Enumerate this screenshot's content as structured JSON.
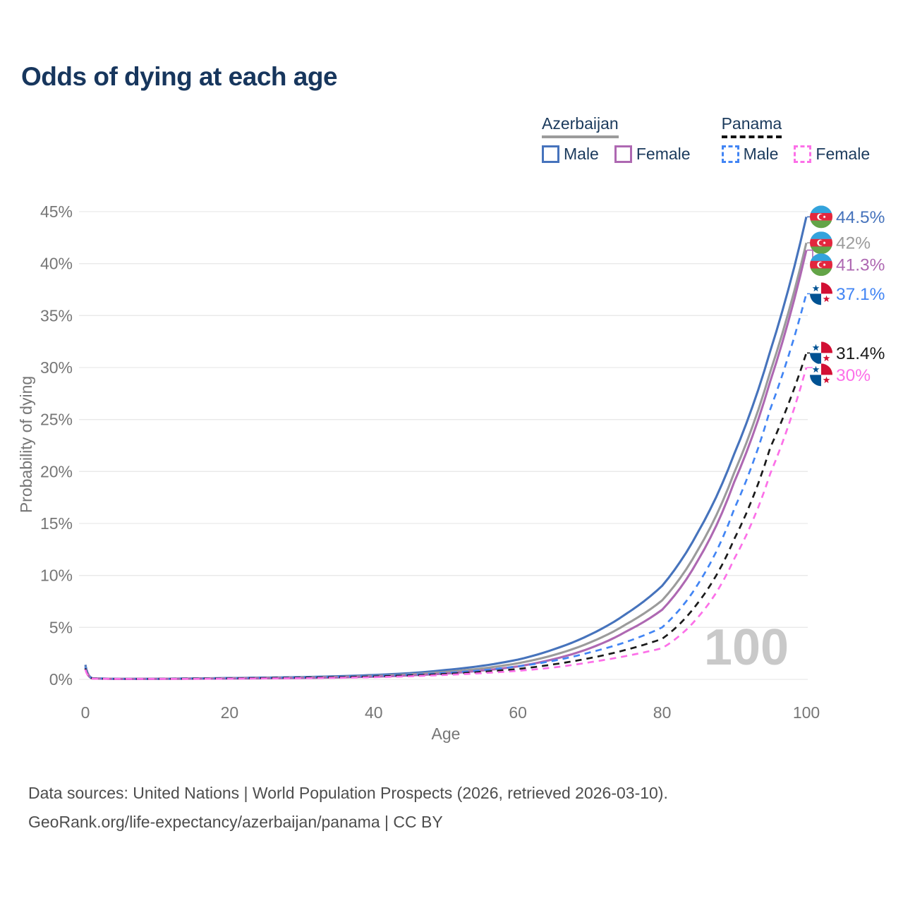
{
  "title": "Odds of dying at each age",
  "legend": {
    "groups": [
      {
        "label": "Azerbaijan",
        "line_style": "solid",
        "underline_color": "#9b9b9b",
        "items": [
          {
            "label": "Male",
            "color": "#4673bc",
            "dashed": false
          },
          {
            "label": "Female",
            "color": "#ae68b2",
            "dashed": false
          }
        ]
      },
      {
        "label": "Panama",
        "line_style": "dashed",
        "underline_color": "#111111",
        "items": [
          {
            "label": "Male",
            "color": "#4285f4",
            "dashed": true
          },
          {
            "label": "Female",
            "color": "#fc70e8",
            "dashed": true
          }
        ]
      }
    ]
  },
  "chart_data": {
    "type": "line",
    "title": "Odds of dying at each age",
    "xlabel": "Age",
    "ylabel": "Probability of dying",
    "xlim": [
      0,
      100
    ],
    "ylim": [
      0,
      45
    ],
    "xticks": [
      0,
      20,
      40,
      60,
      80,
      100
    ],
    "yticks": [
      0,
      5,
      10,
      15,
      20,
      25,
      30,
      35,
      40,
      45
    ],
    "ytick_suffix": "%",
    "grid": "horizontal",
    "legend_position": "top-right",
    "watermark": "100",
    "ages": [
      0,
      1,
      5,
      10,
      15,
      20,
      25,
      30,
      35,
      40,
      45,
      50,
      55,
      60,
      65,
      70,
      75,
      80,
      85,
      90,
      95,
      100
    ],
    "series": [
      {
        "name": "Azerbaijan Male",
        "country": "azerbaijan",
        "sex": "male",
        "color": "#4673bc",
        "dashed": false,
        "end_label": "44.5%",
        "end_value": 44.5,
        "values": [
          1.4,
          0.1,
          0.05,
          0.06,
          0.09,
          0.13,
          0.17,
          0.22,
          0.3,
          0.42,
          0.6,
          0.9,
          1.3,
          1.9,
          2.9,
          4.3,
          6.3,
          9.0,
          14.2,
          21.7,
          31.6,
          44.5
        ]
      },
      {
        "name": "Azerbaijan",
        "country": "azerbaijan",
        "sex": "both",
        "color": "#9b9b9b",
        "dashed": false,
        "end_label": "42%",
        "end_value": 42,
        "values": [
          1.25,
          0.09,
          0.05,
          0.05,
          0.08,
          0.11,
          0.14,
          0.18,
          0.24,
          0.34,
          0.48,
          0.72,
          1.05,
          1.55,
          2.35,
          3.55,
          5.3,
          7.6,
          12.5,
          19.9,
          29.6,
          42.0
        ]
      },
      {
        "name": "Azerbaijan Female",
        "country": "azerbaijan",
        "sex": "female",
        "color": "#ae68b2",
        "dashed": false,
        "end_label": "41.3%",
        "end_value": 41.3,
        "values": [
          1.1,
          0.08,
          0.04,
          0.05,
          0.06,
          0.08,
          0.1,
          0.13,
          0.18,
          0.26,
          0.38,
          0.56,
          0.85,
          1.25,
          1.95,
          3.0,
          4.6,
          6.7,
          11.5,
          19.0,
          28.7,
          41.3
        ]
      },
      {
        "name": "Panama Male",
        "country": "panama",
        "sex": "male",
        "color": "#4285f4",
        "dashed": true,
        "end_label": "37.1%",
        "end_value": 37.1,
        "values": [
          1.2,
          0.09,
          0.05,
          0.05,
          0.08,
          0.12,
          0.15,
          0.19,
          0.25,
          0.33,
          0.45,
          0.62,
          0.88,
          1.25,
          1.8,
          2.6,
          3.6,
          5.0,
          9.2,
          16.4,
          26.0,
          37.1
        ]
      },
      {
        "name": "Panama",
        "country": "panama",
        "sex": "both",
        "color": "#1a1a1a",
        "dashed": true,
        "end_label": "31.4%",
        "end_value": 31.4,
        "values": [
          1.05,
          0.08,
          0.04,
          0.05,
          0.07,
          0.1,
          0.13,
          0.16,
          0.21,
          0.28,
          0.38,
          0.52,
          0.72,
          1.0,
          1.45,
          2.05,
          2.85,
          3.9,
          7.4,
          13.5,
          22.3,
          31.4
        ]
      },
      {
        "name": "Panama Female",
        "country": "panama",
        "sex": "female",
        "color": "#fc70e8",
        "dashed": true,
        "end_label": "30%",
        "end_value": 30,
        "values": [
          0.95,
          0.07,
          0.04,
          0.04,
          0.05,
          0.07,
          0.09,
          0.11,
          0.15,
          0.21,
          0.3,
          0.43,
          0.6,
          0.82,
          1.15,
          1.65,
          2.25,
          3.0,
          6.0,
          11.6,
          19.8,
          30.0
        ]
      }
    ]
  },
  "footer": {
    "line1": "Data sources: United Nations | World Population Prospects (2026, retrieved 2026-03-10).",
    "line2": "GeoRank.org/life-expectancy/azerbaijan/panama | CC BY"
  }
}
